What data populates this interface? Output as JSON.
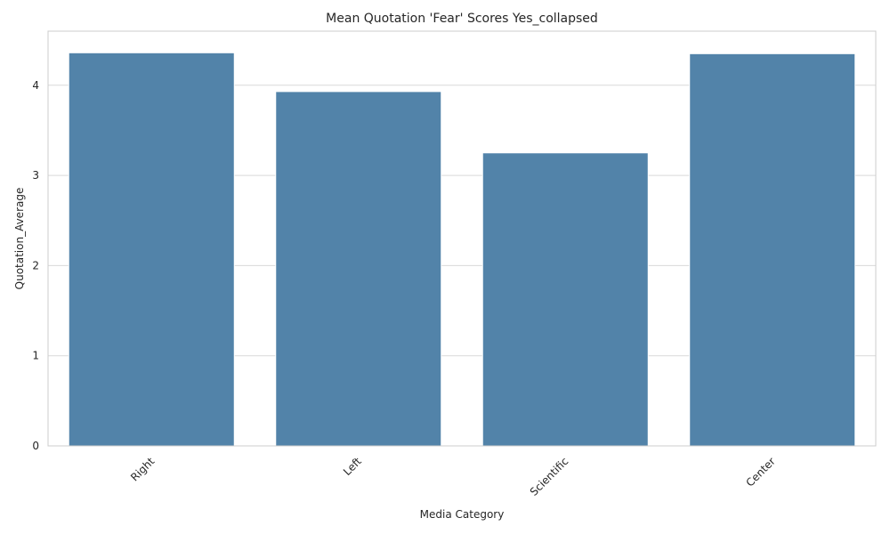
{
  "chart_data": {
    "type": "bar",
    "title": "Mean Quotation 'Fear' Scores Yes_collapsed",
    "xlabel": "Media Category",
    "ylabel": "Quotation_Average",
    "categories": [
      "Right",
      "Left",
      "Scientific",
      "Center"
    ],
    "values": [
      4.36,
      3.93,
      3.25,
      4.35
    ],
    "ylim": [
      0,
      4.6
    ],
    "yticks": [
      0,
      1,
      2,
      3,
      4
    ],
    "grid": true,
    "x_tick_rotation": 45,
    "colors": {
      "bar": "#5283a9",
      "bar_edge": "#ffffff"
    }
  }
}
